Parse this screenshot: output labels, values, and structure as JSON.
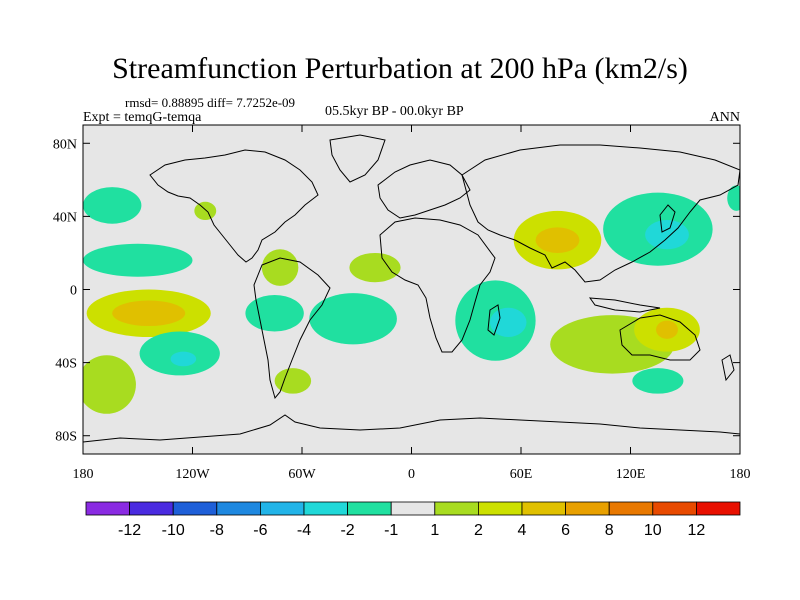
{
  "chart_data": {
    "type": "contour_map",
    "title": "Streamfunction Perturbation at 200 hPa (km2/s)",
    "stats_text": "rmsd= 0.88895 diff= 7.7252e-09",
    "experiment_label": "Expt = temqG-temqa",
    "period_label": "05.5kyr BP - 00.0kyr BP",
    "season_label": "ANN",
    "x_axis": {
      "range": [
        -180,
        180
      ],
      "tick_values": [
        -180,
        -120,
        -60,
        0,
        60,
        120,
        180
      ],
      "tick_labels": [
        "180",
        "120W",
        "60W",
        "0",
        "60E",
        "120E",
        "180"
      ]
    },
    "y_axis": {
      "range": [
        -90,
        90
      ],
      "tick_values": [
        80,
        40,
        0,
        -40,
        -80
      ],
      "tick_labels": [
        "80N",
        "40N",
        "0",
        "40S",
        "80S"
      ]
    },
    "background_color": "#e6e6e6",
    "colorbar": {
      "colors": [
        "#8a2be2",
        "#4a2be0",
        "#1e5fd8",
        "#1e88e0",
        "#22b4e8",
        "#20d8d8",
        "#20e0a0",
        "#e6e6e6",
        "#a8dc20",
        "#cce000",
        "#e0c000",
        "#e8a000",
        "#e87800",
        "#e84a00",
        "#e81000"
      ],
      "labels": [
        "-12",
        "-10",
        "-8",
        "-6",
        "-4",
        "-2",
        "-1",
        "1",
        "2",
        "4",
        "6",
        "8",
        "10",
        "12"
      ]
    },
    "anomalies": [
      {
        "lon": -164,
        "lat": 46,
        "rx": 16,
        "ry": 10,
        "value": -1.5
      },
      {
        "lon": -150,
        "lat": 16,
        "rx": 30,
        "ry": 9,
        "value": -1.5
      },
      {
        "lon": -144,
        "lat": -13,
        "rx": 34,
        "ry": 13,
        "value": 2
      },
      {
        "lon": -144,
        "lat": -13,
        "rx": 20,
        "ry": 7,
        "value": 4
      },
      {
        "lon": -127,
        "lat": -35,
        "rx": 22,
        "ry": 12,
        "value": -1.5
      },
      {
        "lon": -125,
        "lat": -38,
        "rx": 7,
        "ry": 4,
        "value": -3
      },
      {
        "lon": -167,
        "lat": -52,
        "rx": 16,
        "ry": 16,
        "value": 1.5
      },
      {
        "lon": -113,
        "lat": 43,
        "rx": 6,
        "ry": 5,
        "value": 1.5
      },
      {
        "lon": -72,
        "lat": 12,
        "rx": 10,
        "ry": 10,
        "value": 1.5
      },
      {
        "lon": -75,
        "lat": -13,
        "rx": 16,
        "ry": 10,
        "value": -1.5
      },
      {
        "lon": -32,
        "lat": -16,
        "rx": 24,
        "ry": 14,
        "value": -1.5
      },
      {
        "lon": -65,
        "lat": -50,
        "rx": 10,
        "ry": 7,
        "value": 1.5
      },
      {
        "lon": -20,
        "lat": 12,
        "rx": 14,
        "ry": 8,
        "value": 1.5
      },
      {
        "lon": 46,
        "lat": -17,
        "rx": 22,
        "ry": 22,
        "value": -1.5
      },
      {
        "lon": 53,
        "lat": -18,
        "rx": 10,
        "ry": 8,
        "value": -3
      },
      {
        "lon": 80,
        "lat": 27,
        "rx": 24,
        "ry": 16,
        "value": 2
      },
      {
        "lon": 80,
        "lat": 27,
        "rx": 12,
        "ry": 7,
        "value": 4
      },
      {
        "lon": 135,
        "lat": 33,
        "rx": 30,
        "ry": 20,
        "value": -1.5
      },
      {
        "lon": 140,
        "lat": 30,
        "rx": 12,
        "ry": 8,
        "value": -3
      },
      {
        "lon": 110,
        "lat": -30,
        "rx": 34,
        "ry": 16,
        "value": 1.5
      },
      {
        "lon": 140,
        "lat": -22,
        "rx": 18,
        "ry": 12,
        "value": 2
      },
      {
        "lon": 140,
        "lat": -22,
        "rx": 6,
        "ry": 5,
        "value": 4
      },
      {
        "lon": 135,
        "lat": -50,
        "rx": 14,
        "ry": 7,
        "value": -1.5
      },
      {
        "lon": 178,
        "lat": 50,
        "rx": 5,
        "ry": 7,
        "value": -1.5
      }
    ]
  }
}
